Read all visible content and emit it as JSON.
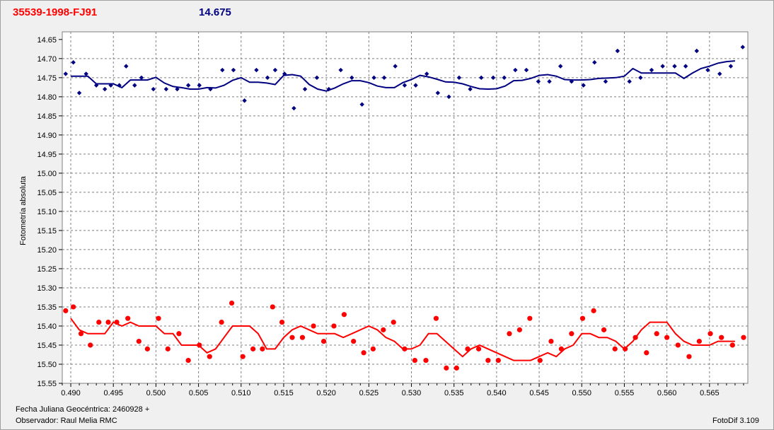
{
  "header": {
    "object_id": "35539-1998-FJ91",
    "magnitude": "14.675"
  },
  "footer": {
    "date_label": "Fecha Juliana Geocéntrica: 2460928 +",
    "observer_label": "Observador: Raul Melia RMC",
    "software_label": "FotoDif 3.109"
  },
  "colors": {
    "top_series": "#000080",
    "bottom_series": "#ff0000",
    "plot_background": "#ffffff",
    "grid": "#808080"
  },
  "chart_data": {
    "type": "scatter",
    "ylabel": "Fotometría absoluta",
    "xlabel": "",
    "xlim": [
      0.489,
      0.5695
    ],
    "ylim": [
      15.55,
      14.63
    ],
    "y_inverted": true,
    "grid": true,
    "x_ticks": [
      "0.490",
      "0.495",
      "0.500",
      "0.505",
      "0.510",
      "0.515",
      "0.520",
      "0.525",
      "0.530",
      "0.535",
      "0.540",
      "0.545",
      "0.550",
      "0.555",
      "0.560",
      "0.565"
    ],
    "y_ticks": [
      "14.65",
      "14.70",
      "14.75",
      "14.80",
      "14.85",
      "14.90",
      "14.95",
      "15.00",
      "15.05",
      "15.10",
      "15.15",
      "15.20",
      "15.25",
      "15.30",
      "15.35",
      "15.40",
      "15.45",
      "15.50",
      "15.55"
    ],
    "series": [
      {
        "name": "",
        "role": "top-points",
        "color": "#000080",
        "x": [
          0.4894,
          0.4903,
          0.491,
          0.4918,
          0.493,
          0.494,
          0.4947,
          0.4957,
          0.4965,
          0.4975,
          0.4983,
          0.4997,
          0.5012,
          0.5025,
          0.5038,
          0.5051,
          0.5064,
          0.5078,
          0.5091,
          0.5104,
          0.5118,
          0.5131,
          0.514,
          0.5151,
          0.5162,
          0.5175,
          0.5189,
          0.5203,
          0.5217,
          0.523,
          0.5242,
          0.5256,
          0.5268,
          0.5281,
          0.5292,
          0.5305,
          0.5318,
          0.5331,
          0.5344,
          0.5356,
          0.5369,
          0.5382,
          0.5396,
          0.5409,
          0.5422,
          0.5435,
          0.5449,
          0.5462,
          0.5475,
          0.5488,
          0.5502,
          0.5515,
          0.5528,
          0.5542,
          0.5556,
          0.5569,
          0.5582,
          0.5595,
          0.5609,
          0.5622,
          0.5635,
          0.5648,
          0.5662,
          0.5675,
          0.5689
        ],
        "y": [
          14.74,
          14.71,
          14.79,
          14.74,
          14.77,
          14.78,
          14.77,
          14.77,
          14.72,
          14.77,
          14.75,
          14.78,
          14.78,
          14.78,
          14.77,
          14.77,
          14.78,
          14.73,
          14.73,
          14.81,
          14.73,
          14.75,
          14.73,
          14.74,
          14.83,
          14.78,
          14.75,
          14.78,
          14.73,
          14.75,
          14.82,
          14.75,
          14.75,
          14.72,
          14.77,
          14.77,
          14.74,
          14.79,
          14.8,
          14.75,
          14.78,
          14.75,
          14.75,
          14.75,
          14.73,
          14.73,
          14.76,
          14.76,
          14.72,
          14.76,
          14.77,
          14.71,
          14.76,
          14.68,
          14.76,
          14.75,
          14.73,
          14.72,
          14.72,
          14.72,
          14.68,
          14.73,
          14.74,
          14.72,
          14.67
        ]
      },
      {
        "name": "",
        "role": "top-trend",
        "color": "#000080",
        "x": [
          0.49,
          0.491,
          0.492,
          0.493,
          0.494,
          0.495,
          0.496,
          0.497,
          0.498,
          0.499,
          0.5,
          0.501,
          0.502,
          0.503,
          0.504,
          0.505,
          0.506,
          0.507,
          0.508,
          0.509,
          0.51,
          0.511,
          0.512,
          0.513,
          0.514,
          0.515,
          0.516,
          0.517,
          0.518,
          0.519,
          0.52,
          0.521,
          0.522,
          0.523,
          0.524,
          0.525,
          0.526,
          0.527,
          0.528,
          0.529,
          0.53,
          0.531,
          0.532,
          0.533,
          0.534,
          0.535,
          0.536,
          0.537,
          0.538,
          0.539,
          0.54,
          0.541,
          0.542,
          0.543,
          0.544,
          0.545,
          0.546,
          0.547,
          0.548,
          0.549,
          0.55,
          0.551,
          0.552,
          0.553,
          0.554,
          0.555,
          0.556,
          0.557,
          0.558,
          0.559,
          0.56,
          0.561,
          0.562,
          0.563,
          0.564,
          0.565,
          0.566,
          0.567,
          0.568
        ],
        "y": [
          14.746,
          14.746,
          14.746,
          14.766,
          14.766,
          14.766,
          14.776,
          14.756,
          14.756,
          14.756,
          14.749,
          14.764,
          14.773,
          14.776,
          14.78,
          14.78,
          14.776,
          14.777,
          14.77,
          14.757,
          14.75,
          14.762,
          14.762,
          14.764,
          14.768,
          14.744,
          14.742,
          14.746,
          14.768,
          14.78,
          14.785,
          14.777,
          14.766,
          14.758,
          14.758,
          14.763,
          14.772,
          14.776,
          14.776,
          14.763,
          14.755,
          14.744,
          14.748,
          14.754,
          14.761,
          14.762,
          14.766,
          14.773,
          14.779,
          14.78,
          14.779,
          14.772,
          14.758,
          14.757,
          14.752,
          14.744,
          14.742,
          14.746,
          14.755,
          14.756,
          14.756,
          14.755,
          14.752,
          14.751,
          14.75,
          14.746,
          14.726,
          14.738,
          14.738,
          14.738,
          14.738,
          14.738,
          14.752,
          14.738,
          14.726,
          14.72,
          14.712,
          14.708,
          14.706
        ]
      },
      {
        "name": "",
        "role": "bottom-points",
        "color": "#ff0000",
        "x": [
          0.4894,
          0.4903,
          0.4912,
          0.4923,
          0.4933,
          0.4944,
          0.4954,
          0.4967,
          0.498,
          0.499,
          0.5003,
          0.5014,
          0.5027,
          0.5038,
          0.5051,
          0.5063,
          0.5077,
          0.5089,
          0.5102,
          0.5114,
          0.5125,
          0.5137,
          0.5148,
          0.516,
          0.5172,
          0.5185,
          0.5197,
          0.5209,
          0.5221,
          0.5232,
          0.5244,
          0.5255,
          0.5267,
          0.5279,
          0.5292,
          0.5304,
          0.5317,
          0.5329,
          0.5341,
          0.5353,
          0.5366,
          0.5379,
          0.539,
          0.5402,
          0.5415,
          0.5427,
          0.5439,
          0.5451,
          0.5464,
          0.5476,
          0.5488,
          0.5501,
          0.5514,
          0.5526,
          0.5539,
          0.5551,
          0.5563,
          0.5576,
          0.5588,
          0.56,
          0.5613,
          0.5626,
          0.5638,
          0.5651,
          0.5664,
          0.5677,
          0.569
        ],
        "y": [
          15.36,
          15.35,
          15.42,
          15.45,
          15.39,
          15.39,
          15.39,
          15.38,
          15.44,
          15.46,
          15.38,
          15.46,
          15.42,
          15.49,
          15.45,
          15.48,
          15.39,
          15.34,
          15.48,
          15.46,
          15.46,
          15.35,
          15.39,
          15.43,
          15.43,
          15.4,
          15.44,
          15.4,
          15.37,
          15.44,
          15.47,
          15.46,
          15.41,
          15.39,
          15.46,
          15.49,
          15.49,
          15.38,
          15.51,
          15.51,
          15.46,
          15.46,
          15.49,
          15.49,
          15.42,
          15.41,
          15.38,
          15.49,
          15.44,
          15.46,
          15.42,
          15.38,
          15.36,
          15.41,
          15.46,
          15.46,
          15.43,
          15.47,
          15.42,
          15.43,
          15.45,
          15.48,
          15.44,
          15.42,
          15.43,
          15.45,
          15.43
        ]
      },
      {
        "name": "",
        "role": "bottom-trend",
        "color": "#ff0000",
        "x": [
          0.49,
          0.491,
          0.492,
          0.493,
          0.494,
          0.495,
          0.496,
          0.497,
          0.498,
          0.499,
          0.5,
          0.501,
          0.502,
          0.503,
          0.504,
          0.505,
          0.506,
          0.507,
          0.508,
          0.509,
          0.51,
          0.511,
          0.512,
          0.513,
          0.514,
          0.515,
          0.516,
          0.517,
          0.518,
          0.519,
          0.52,
          0.521,
          0.522,
          0.523,
          0.524,
          0.525,
          0.526,
          0.527,
          0.528,
          0.529,
          0.53,
          0.531,
          0.532,
          0.533,
          0.534,
          0.535,
          0.536,
          0.537,
          0.538,
          0.539,
          0.54,
          0.541,
          0.542,
          0.543,
          0.544,
          0.545,
          0.546,
          0.547,
          0.548,
          0.549,
          0.55,
          0.551,
          0.552,
          0.553,
          0.554,
          0.555,
          0.556,
          0.557,
          0.558,
          0.559,
          0.56,
          0.561,
          0.562,
          0.563,
          0.564,
          0.565,
          0.566,
          0.567,
          0.568
        ],
        "y": [
          15.38,
          15.41,
          15.42,
          15.42,
          15.42,
          15.39,
          15.4,
          15.39,
          15.4,
          15.4,
          15.4,
          15.42,
          15.42,
          15.45,
          15.45,
          15.45,
          15.47,
          15.46,
          15.43,
          15.4,
          15.4,
          15.4,
          15.42,
          15.46,
          15.46,
          15.43,
          15.41,
          15.4,
          15.41,
          15.42,
          15.42,
          15.42,
          15.43,
          15.42,
          15.41,
          15.4,
          15.41,
          15.43,
          15.44,
          15.46,
          15.46,
          15.45,
          15.42,
          15.42,
          15.44,
          15.46,
          15.48,
          15.46,
          15.45,
          15.46,
          15.47,
          15.48,
          15.49,
          15.49,
          15.49,
          15.48,
          15.47,
          15.48,
          15.46,
          15.45,
          15.42,
          15.42,
          15.43,
          15.43,
          15.44,
          15.46,
          15.44,
          15.41,
          15.39,
          15.39,
          15.39,
          15.42,
          15.44,
          15.45,
          15.45,
          15.45,
          15.44,
          15.44,
          15.44
        ]
      }
    ]
  }
}
